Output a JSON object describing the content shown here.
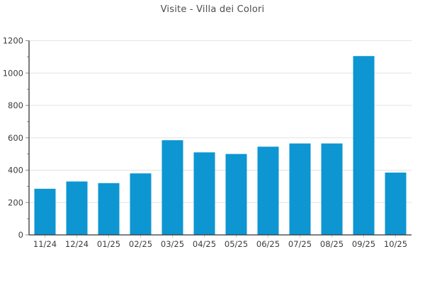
{
  "title": "Visite - Villa dei Colori",
  "colors": {
    "bar": "#0d96d2",
    "grid": "#e4e4e4",
    "axis": "#333333",
    "tick": "#8a8a8a",
    "x_tick": "#c9c9c9",
    "tick_label": "#3c3c3c",
    "title_text": "#4d4d4d",
    "background": "#ffffff"
  },
  "chart_data": {
    "type": "bar",
    "title": "Visite - Villa dei Colori",
    "categories": [
      "11/24",
      "12/24",
      "01/25",
      "02/25",
      "03/25",
      "04/25",
      "05/25",
      "06/25",
      "07/25",
      "08/25",
      "09/25",
      "10/25"
    ],
    "values": [
      285,
      330,
      320,
      380,
      585,
      510,
      500,
      545,
      565,
      565,
      1105,
      385
    ],
    "series_name": "Visite",
    "xlabel": "",
    "ylabel": "",
    "ylim": [
      0,
      1200
    ],
    "yticks": [
      0,
      200,
      400,
      600,
      800,
      1000,
      1200
    ],
    "yminor_step": 100,
    "grid": "horizontal-major",
    "legend": "none",
    "bar_color": "#0d96d2"
  }
}
